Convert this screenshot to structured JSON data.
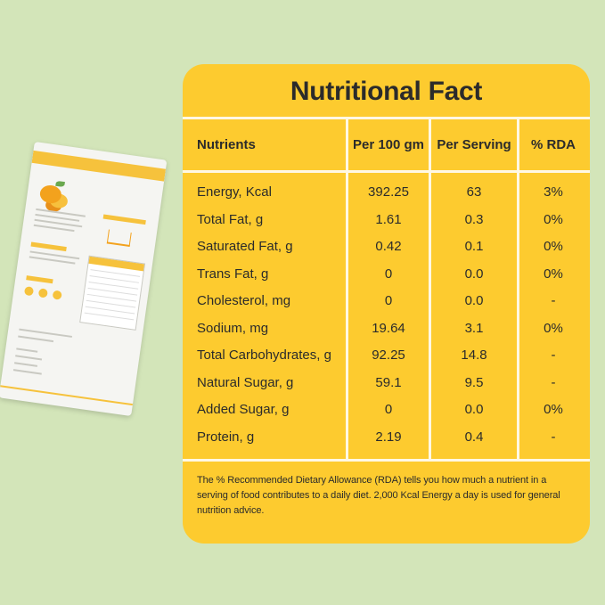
{
  "card": {
    "title": "Nutritional Fact",
    "headers": {
      "nutrients": "Nutrients",
      "per_100": "Per 100 gm",
      "per_serving": "Per Serving",
      "rda": "% RDA"
    },
    "rows": [
      {
        "name": "Energy, Kcal",
        "per_100": "392.25",
        "per_serving": "63",
        "rda": "3%"
      },
      {
        "name": "Total Fat, g",
        "per_100": "1.61",
        "per_serving": "0.3",
        "rda": "0%"
      },
      {
        "name": "Saturated Fat, g",
        "per_100": "0.42",
        "per_serving": "0.1",
        "rda": "0%"
      },
      {
        "name": "Trans Fat, g",
        "per_100": "0",
        "per_serving": "0.0",
        "rda": "0%"
      },
      {
        "name": "Cholesterol, mg",
        "per_100": "0",
        "per_serving": "0.0",
        "rda": "-"
      },
      {
        "name": "Sodium, mg",
        "per_100": "19.64",
        "per_serving": "3.1",
        "rda": "0%"
      },
      {
        "name": "Total Carbohydrates, g",
        "per_100": "92.25",
        "per_serving": "14.8",
        "rda": "-"
      },
      {
        "name": "Natural Sugar, g",
        "per_100": "59.1",
        "per_serving": "9.5",
        "rda": "-"
      },
      {
        "name": "Added Sugar, g",
        "per_100": "0",
        "per_serving": "0.0",
        "rda": "0%"
      },
      {
        "name": "Protein, g",
        "per_100": "2.19",
        "per_serving": "0.4",
        "rda": "-"
      }
    ],
    "note": "The % Recommended Dietary Allowance (RDA) tells you how much a nutrient in a serving of food contributes to a daily diet. 2,000 Kcal Energy a day is used for general nutrition advice."
  },
  "colors": {
    "background": "#d3e5b9",
    "card": "#fdcb2f",
    "divider": "#fff8e4",
    "text": "#2b2b2b"
  },
  "pouch": {
    "icon": "product-pouch-image"
  }
}
